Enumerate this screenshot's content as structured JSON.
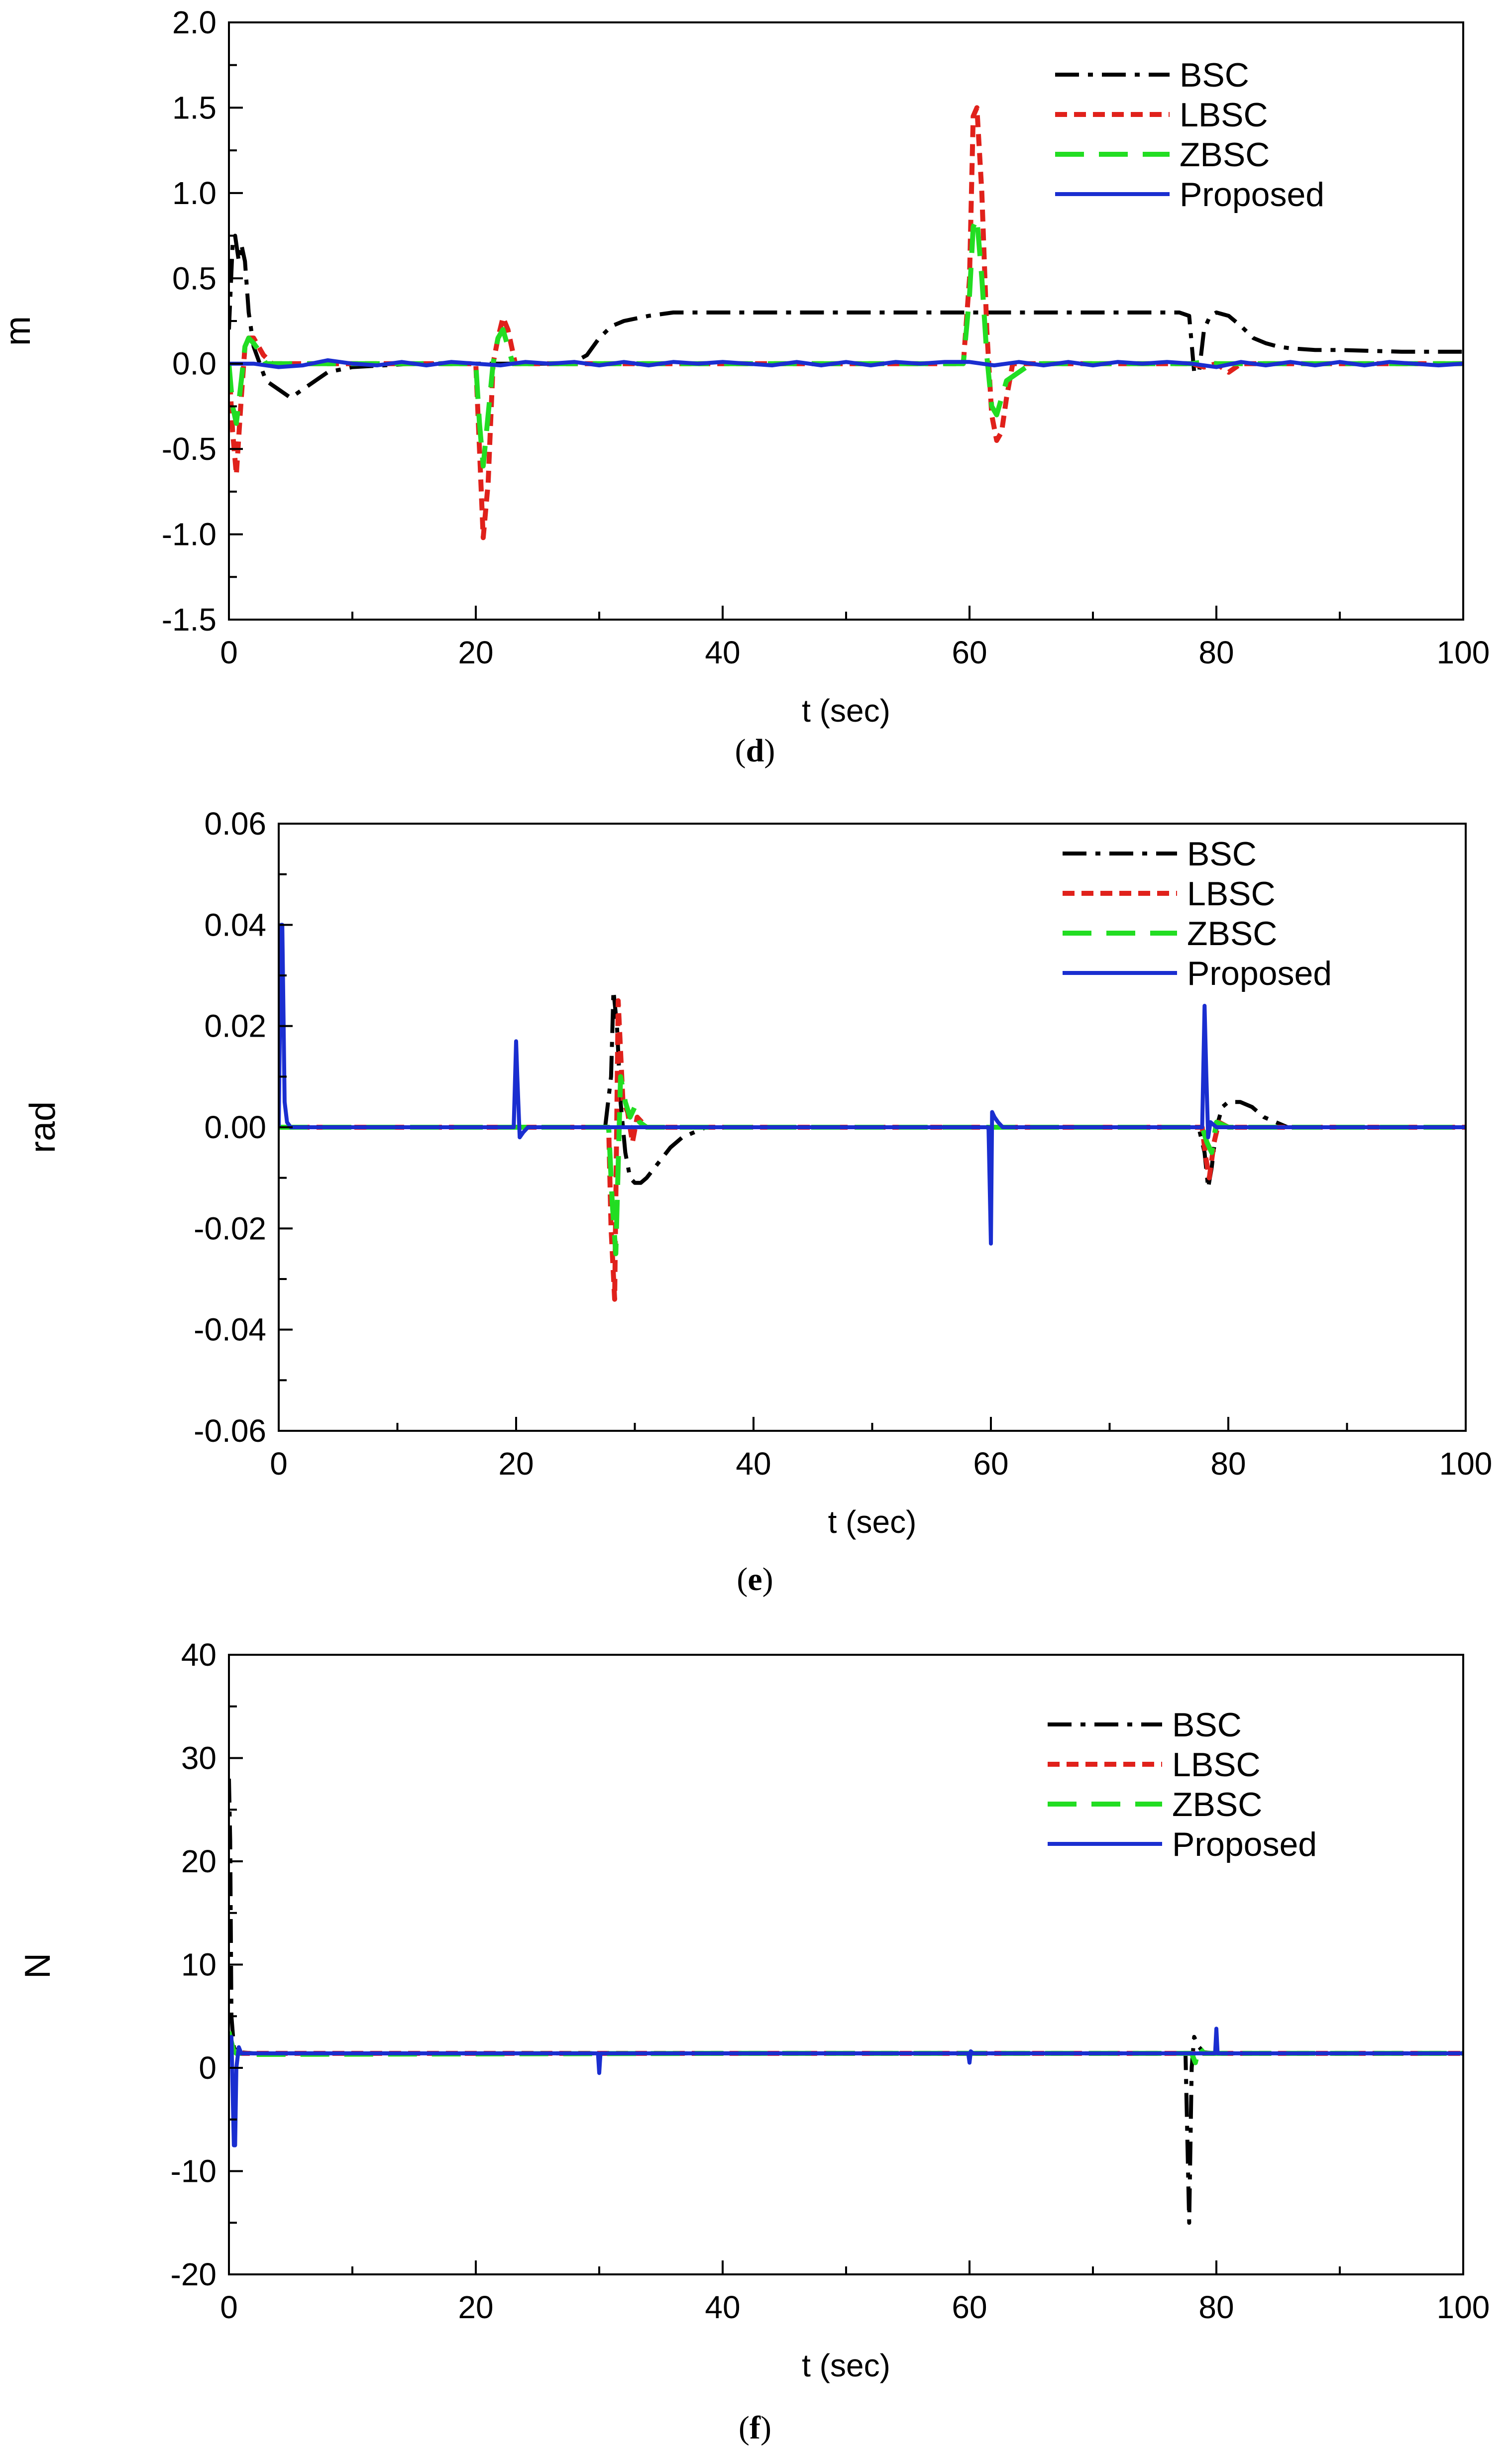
{
  "figure": {
    "panels": [
      {
        "caption_open": "(",
        "caption_letter": "d",
        "caption_close": ")"
      },
      {
        "caption_open": "(",
        "caption_letter": "e",
        "caption_close": ")"
      },
      {
        "caption_open": "(",
        "caption_letter": "f",
        "caption_close": ")"
      }
    ]
  },
  "colors": {
    "BSC": "#000000",
    "LBSC": "#e0211b",
    "ZBSC": "#22dd22",
    "Proposed": "#1a2ed0"
  },
  "chart_data": [
    {
      "type": "line",
      "title": "",
      "xlabel": "t (sec)",
      "ylabel": "m",
      "xlim": [
        0,
        100
      ],
      "ylim": [
        -1.5,
        2.0
      ],
      "xticks": [
        0,
        20,
        40,
        60,
        80,
        100
      ],
      "yticks": [
        -1.5,
        -1.0,
        -0.5,
        0.0,
        0.5,
        1.0,
        1.5,
        2.0
      ],
      "ytick_labels": [
        "-1.5",
        "-1.0",
        "-0.5",
        "0.0",
        "0.5",
        "1.0",
        "1.5",
        "2.0"
      ],
      "legend": "top-right",
      "series": [
        {
          "name": "BSC",
          "x": [
            0,
            0.3,
            0.5,
            0.8,
            1,
            1.3,
            1.6,
            2,
            2.5,
            3,
            4,
            5,
            6,
            8,
            10,
            15,
            20,
            25,
            27,
            28,
            29,
            30,
            31,
            32,
            34,
            36,
            40,
            50,
            60,
            70,
            77,
            77.8,
            78.2,
            78.6,
            79,
            79.5,
            80,
            81,
            82,
            83,
            84,
            85,
            86,
            88,
            90,
            95,
            100
          ],
          "y": [
            0.2,
            0.7,
            0.75,
            0.6,
            0.7,
            0.6,
            0.3,
            0.1,
            0,
            -0.1,
            -0.15,
            -0.2,
            -0.15,
            -0.05,
            -0.02,
            0,
            0,
            0,
            0,
            0.01,
            0.05,
            0.15,
            0.22,
            0.25,
            0.28,
            0.3,
            0.3,
            0.3,
            0.3,
            0.3,
            0.3,
            0.28,
            -0.05,
            -0.05,
            0.2,
            0.28,
            0.3,
            0.28,
            0.22,
            0.15,
            0.12,
            0.1,
            0.09,
            0.08,
            0.08,
            0.07,
            0.07
          ]
        },
        {
          "name": "LBSC",
          "x": [
            0,
            0.3,
            0.6,
            1,
            1.3,
            1.6,
            2,
            2.4,
            2.8,
            3.5,
            5,
            10,
            15,
            19.5,
            20,
            20.3,
            20.6,
            21,
            21.4,
            21.8,
            22.2,
            22.6,
            23.2,
            25,
            30,
            40,
            50,
            58,
            59.5,
            60,
            60.3,
            60.6,
            61,
            61.4,
            61.8,
            62.2,
            62.6,
            63,
            63.5,
            65,
            70,
            75,
            78,
            79,
            80,
            81,
            82,
            85,
            90,
            100
          ],
          "y": [
            0,
            -0.4,
            -0.65,
            -0.2,
            0.1,
            0.15,
            0.15,
            0.1,
            0.05,
            0,
            0,
            0,
            0,
            0,
            0,
            -0.5,
            -1.02,
            -0.7,
            0,
            0.15,
            0.27,
            0.2,
            0,
            0,
            0,
            0,
            0,
            0,
            0,
            0.5,
            1.45,
            1.5,
            1,
            0.2,
            -0.3,
            -0.45,
            -0.4,
            -0.2,
            0,
            0,
            0,
            0,
            0,
            -0.02,
            0,
            -0.05,
            0,
            0,
            0,
            0
          ]
        },
        {
          "name": "ZBSC",
          "x": [
            0,
            0.3,
            0.6,
            1,
            1.3,
            1.6,
            2,
            2.4,
            3,
            5,
            10,
            19.5,
            20,
            20.3,
            20.6,
            21,
            21.4,
            21.8,
            22.2,
            23,
            25,
            40,
            58,
            59.5,
            60,
            60.3,
            60.6,
            61,
            61.4,
            61.8,
            62.2,
            63,
            65,
            78,
            79,
            80,
            90,
            100
          ],
          "y": [
            0,
            -0.25,
            -0.35,
            -0.1,
            0.1,
            0.15,
            0.12,
            0.08,
            0,
            0,
            0,
            0,
            0,
            -0.35,
            -0.6,
            -0.3,
            0,
            0.15,
            0.2,
            0,
            0,
            0,
            0,
            0,
            0.4,
            0.8,
            0.85,
            0.5,
            0.05,
            -0.25,
            -0.3,
            -0.1,
            0,
            0,
            0.01,
            0,
            0,
            0
          ]
        },
        {
          "name": "Proposed",
          "x": [
            0,
            2,
            4,
            6,
            8,
            10,
            12,
            14,
            16,
            18,
            20,
            22,
            24,
            26,
            28,
            30,
            32,
            34,
            36,
            38,
            40,
            42,
            44,
            46,
            48,
            50,
            52,
            54,
            56,
            58,
            60,
            62,
            64,
            66,
            68,
            70,
            72,
            74,
            76,
            78,
            80,
            82,
            84,
            86,
            88,
            90,
            92,
            94,
            96,
            98,
            100
          ],
          "y": [
            0,
            0,
            -0.02,
            -0.01,
            0.02,
            0,
            -0.01,
            0.01,
            -0.01,
            0.01,
            0,
            -0.01,
            0.01,
            0,
            0.01,
            -0.01,
            0.01,
            -0.01,
            0.01,
            0,
            0.01,
            0,
            -0.01,
            0.01,
            -0.01,
            0.01,
            -0.01,
            0.01,
            0,
            0.01,
            0.01,
            -0.01,
            0.01,
            -0.01,
            0.01,
            -0.01,
            0.01,
            0,
            0.01,
            0,
            -0.02,
            0.01,
            -0.01,
            0.01,
            -0.01,
            0.01,
            -0.01,
            0.01,
            0,
            -0.01,
            0
          ]
        }
      ]
    },
    {
      "type": "line",
      "title": "",
      "xlabel": "t (sec)",
      "ylabel": "rad",
      "xlim": [
        0,
        100
      ],
      "ylim": [
        -0.06,
        0.06
      ],
      "xticks": [
        0,
        20,
        40,
        60,
        80,
        100
      ],
      "yticks": [
        -0.06,
        -0.04,
        -0.02,
        0.0,
        0.02,
        0.04,
        0.06
      ],
      "ytick_labels": [
        "-0.06",
        "-0.04",
        "-0.02",
        "0.00",
        "0.02",
        "0.04",
        "0.06"
      ],
      "legend": "top-right",
      "series": [
        {
          "name": "BSC",
          "x": [
            0,
            27.5,
            28,
            28.2,
            28.5,
            28.8,
            29.2,
            29.6,
            30,
            30.5,
            31,
            32,
            33,
            34,
            36,
            40,
            60,
            77.5,
            78,
            78.3,
            78.6,
            79,
            79.5,
            80,
            81,
            82,
            83,
            84,
            85,
            90,
            100
          ],
          "y": [
            0,
            0,
            0.01,
            0.027,
            0.02,
            0.005,
            -0.005,
            -0.01,
            -0.011,
            -0.011,
            -0.01,
            -0.007,
            -0.004,
            -0.002,
            0,
            0,
            0,
            0,
            -0.005,
            -0.012,
            -0.008,
            0,
            0.004,
            0.005,
            0.005,
            0.004,
            0.002,
            0.001,
            0,
            0,
            0
          ]
        },
        {
          "name": "LBSC",
          "x": [
            0,
            27.8,
            28,
            28.3,
            28.6,
            29,
            29.4,
            29.8,
            30.2,
            31,
            40,
            77.8,
            78.1,
            78.4,
            78.8,
            79.2,
            80,
            100
          ],
          "y": [
            0,
            0,
            -0.02,
            -0.034,
            0.025,
            0.005,
            0.003,
            -0.003,
            0.002,
            0,
            0,
            0,
            -0.006,
            -0.01,
            -0.003,
            0.001,
            0,
            0
          ]
        },
        {
          "name": "ZBSC",
          "x": [
            0,
            27.8,
            28.1,
            28.4,
            28.8,
            29.2,
            29.6,
            30,
            30.4,
            31,
            40,
            77.8,
            78.2,
            78.6,
            79,
            80,
            100
          ],
          "y": [
            0,
            0,
            -0.015,
            -0.025,
            0.01,
            0.005,
            0.002,
            0.004,
            0.001,
            0,
            0,
            0,
            -0.003,
            -0.005,
            0.001,
            0,
            0
          ]
        },
        {
          "name": "Proposed",
          "x": [
            0,
            0.2,
            0.3,
            0.5,
            0.7,
            1,
            19.8,
            20,
            20.1,
            20.3,
            20.6,
            21,
            22,
            59.8,
            60,
            60.1,
            60.3,
            60.6,
            61,
            62,
            77.8,
            78,
            78.15,
            78.3,
            78.5,
            79,
            100
          ],
          "y": [
            0,
            0.04,
            0.04,
            0.005,
            0.001,
            0,
            0,
            0.017,
            0.01,
            -0.002,
            -0.001,
            0,
            0,
            0,
            -0.023,
            0.003,
            0.002,
            0.001,
            0,
            0,
            0,
            0.024,
            0.01,
            -0.002,
            0.001,
            0,
            0
          ]
        }
      ]
    },
    {
      "type": "line",
      "title": "",
      "xlabel": "t (sec)",
      "ylabel": "N",
      "xlim": [
        0,
        100
      ],
      "ylim": [
        -20,
        40
      ],
      "xticks": [
        0,
        20,
        40,
        60,
        80,
        100
      ],
      "yticks": [
        -20,
        -10,
        0,
        10,
        20,
        30,
        40
      ],
      "ytick_labels": [
        "-20",
        "-10",
        "0",
        "10",
        "20",
        "30",
        "40"
      ],
      "legend": "top-right",
      "series": [
        {
          "name": "BSC",
          "x": [
            0,
            0.1,
            0.2,
            0.4,
            0.6,
            0.8,
            1,
            2,
            5,
            20,
            40,
            60,
            77.5,
            77.8,
            78,
            78.2,
            78.4,
            78.6,
            79,
            80,
            81,
            90,
            100
          ],
          "y": [
            28,
            22,
            5,
            2,
            1.5,
            1.5,
            1.5,
            1.4,
            1.4,
            1.4,
            1.4,
            1.4,
            1.4,
            -15,
            0,
            3,
            2.5,
            2,
            1.5,
            1.4,
            1.4,
            1.4,
            1.4
          ]
        },
        {
          "name": "LBSC",
          "x": [
            0,
            0.3,
            0.6,
            1,
            2,
            20,
            40,
            60,
            80,
            100
          ],
          "y": [
            3,
            2,
            1.5,
            1.4,
            1.4,
            1.4,
            1.4,
            1.4,
            1.4,
            1.4
          ]
        },
        {
          "name": "ZBSC",
          "x": [
            0,
            0.2,
            0.4,
            0.6,
            1,
            2,
            40,
            60,
            78,
            78.3,
            78.6,
            79,
            80,
            100
          ],
          "y": [
            3.5,
            2.5,
            1.6,
            1.4,
            1.4,
            1.3,
            1.4,
            1.4,
            1.4,
            0.5,
            2,
            1.4,
            1.4,
            1.4
          ]
        },
        {
          "name": "Proposed",
          "x": [
            0,
            0.2,
            0.4,
            0.5,
            0.6,
            0.8,
            1,
            1.5,
            5,
            29.9,
            30,
            30.1,
            30.3,
            59.9,
            60,
            60.1,
            60.3,
            79.9,
            80,
            80.1,
            80.3,
            81,
            90,
            100
          ],
          "y": [
            1.5,
            3,
            -7.5,
            -7.5,
            0,
            2,
            1.4,
            1.4,
            1.4,
            1.4,
            -0.5,
            1.4,
            1.4,
            1.4,
            0.5,
            1.6,
            1.4,
            1.4,
            3.8,
            1.4,
            1.4,
            1.4,
            1.4,
            1.4
          ]
        }
      ]
    }
  ]
}
